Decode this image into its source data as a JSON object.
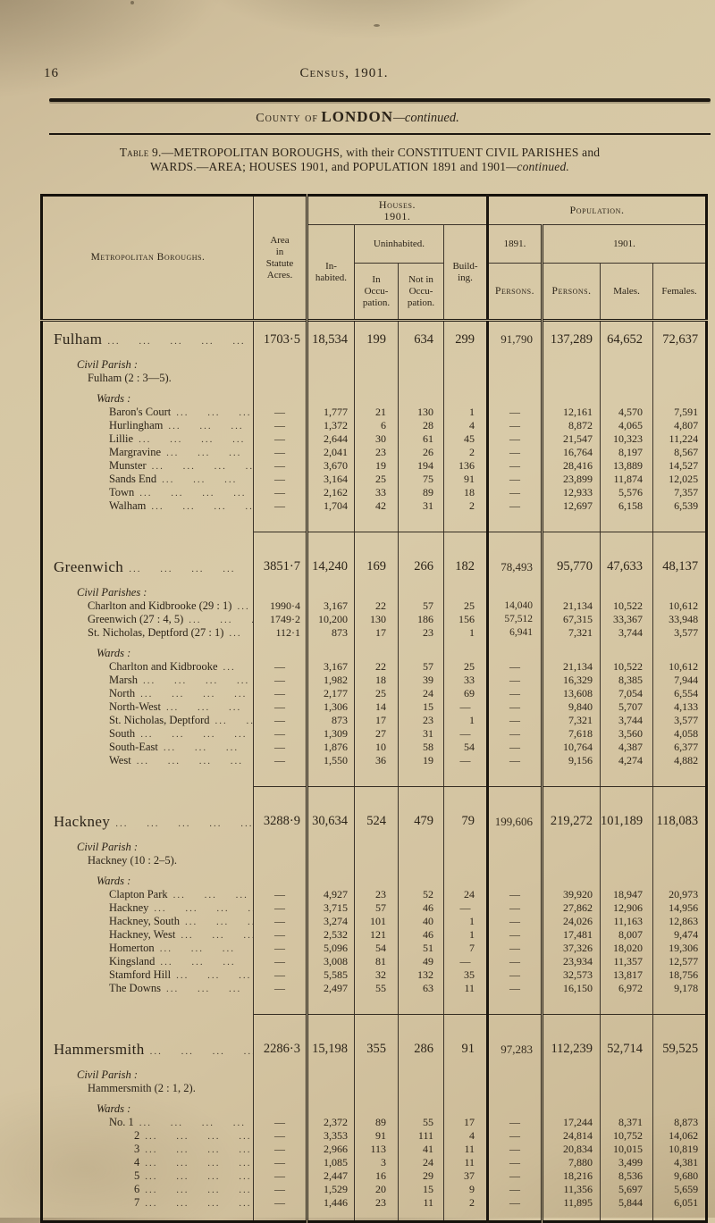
{
  "page": {
    "number": "16",
    "header": "Census, 1901.",
    "county_prefix": "County of",
    "county_name": "LONDON",
    "county_suffix": "—continued.",
    "title_prefix": "Table 9.—",
    "title_line1": "METROPOLITAN BOROUGHS, with their CONSTITUENT CIVIL PARISHES and",
    "title_line2": "WARDS.—AREA; HOUSES 1901, and POPULATION 1891 and 1901",
    "title_line2_italic": "—continued."
  },
  "table": {
    "headers": {
      "boroughs": "Metropolitan Boroughs.",
      "area": "Area\nin\nStatute\nAcres.",
      "houses_group": "Houses.\n1901.",
      "population_group": "Population.",
      "inhabited": "In-\nhabited.",
      "uninhabited": "Uninhabited.",
      "in_occupation": "In\nOccu-\npation.",
      "not_in_occupation": "Not in\nOccu-\npation.",
      "building": "Build-\ning.",
      "y1891": "1891.",
      "y1901": "1901.",
      "persons_1891": "Persons.",
      "persons_1901": "Persons.",
      "males": "Males.",
      "females": "Females."
    },
    "columns": [
      "area",
      "inhabited",
      "in-occupation",
      "not-in-occupation",
      "building",
      "persons-1891",
      "persons-1901",
      "males",
      "females"
    ],
    "sections": [
      {
        "name": "Fulham",
        "totals": [
          "1703·5",
          "18,534",
          "199",
          "634",
          "299",
          "91,790",
          "137,289",
          "64,652",
          "72,637"
        ],
        "parish_label": "Civil Parish :",
        "parishes": [
          {
            "name": "Fulham (2 : 3—5).",
            "values": null
          }
        ],
        "wards_label": "Wards :",
        "wards": [
          {
            "name": "Baron's Court",
            "values": [
              "—",
              "1,777",
              "21",
              "130",
              "1",
              "—",
              "12,161",
              "4,570",
              "7,591"
            ]
          },
          {
            "name": "Hurlingham",
            "values": [
              "—",
              "1,372",
              "6",
              "28",
              "4",
              "—",
              "8,872",
              "4,065",
              "4,807"
            ]
          },
          {
            "name": "Lillie",
            "values": [
              "—",
              "2,644",
              "30",
              "61",
              "45",
              "—",
              "21,547",
              "10,323",
              "11,224"
            ]
          },
          {
            "name": "Margravine",
            "values": [
              "—",
              "2,041",
              "23",
              "26",
              "2",
              "—",
              "16,764",
              "8,197",
              "8,567"
            ]
          },
          {
            "name": "Munster",
            "values": [
              "—",
              "3,670",
              "19",
              "194",
              "136",
              "—",
              "28,416",
              "13,889",
              "14,527"
            ]
          },
          {
            "name": "Sands End",
            "values": [
              "—",
              "3,164",
              "25",
              "75",
              "91",
              "—",
              "23,899",
              "11,874",
              "12,025"
            ]
          },
          {
            "name": "Town",
            "values": [
              "—",
              "2,162",
              "33",
              "89",
              "18",
              "—",
              "12,933",
              "5,576",
              "7,357"
            ]
          },
          {
            "name": "Walham",
            "values": [
              "—",
              "1,704",
              "42",
              "31",
              "2",
              "—",
              "12,697",
              "6,158",
              "6,539"
            ]
          }
        ]
      },
      {
        "name": "Greenwich",
        "totals": [
          "3851·7",
          "14,240",
          "169",
          "266",
          "182",
          "78,493",
          "95,770",
          "47,633",
          "48,137"
        ],
        "parish_label": "Civil Parishes :",
        "parishes": [
          {
            "name": "Charlton and Kidbrooke (29 : 1)",
            "values": [
              "1990·4",
              "3,167",
              "22",
              "57",
              "25",
              "14,040",
              "21,134",
              "10,522",
              "10,612"
            ]
          },
          {
            "name": "Greenwich (27 : 4, 5)",
            "values": [
              "1749·2",
              "10,200",
              "130",
              "186",
              "156",
              "57,512",
              "67,315",
              "33,367",
              "33,948"
            ]
          },
          {
            "name": "St. Nicholas, Deptford (27 : 1)",
            "values": [
              "112·1",
              "873",
              "17",
              "23",
              "1",
              "6,941",
              "7,321",
              "3,744",
              "3,577"
            ]
          }
        ],
        "wards_label": "Wards :",
        "wards": [
          {
            "name": "Charlton and Kidbrooke",
            "values": [
              "—",
              "3,167",
              "22",
              "57",
              "25",
              "—",
              "21,134",
              "10,522",
              "10,612"
            ]
          },
          {
            "name": "Marsh",
            "values": [
              "—",
              "1,982",
              "18",
              "39",
              "33",
              "—",
              "16,329",
              "8,385",
              "7,944"
            ]
          },
          {
            "name": "North",
            "values": [
              "—",
              "2,177",
              "25",
              "24",
              "69",
              "—",
              "13,608",
              "7,054",
              "6,554"
            ]
          },
          {
            "name": "North-West",
            "values": [
              "—",
              "1,306",
              "14",
              "15",
              "—",
              "—",
              "9,840",
              "5,707",
              "4,133"
            ]
          },
          {
            "name": "St. Nicholas, Deptford",
            "values": [
              "—",
              "873",
              "17",
              "23",
              "1",
              "—",
              "7,321",
              "3,744",
              "3,577"
            ]
          },
          {
            "name": "South",
            "values": [
              "—",
              "1,309",
              "27",
              "31",
              "—",
              "—",
              "7,618",
              "3,560",
              "4,058"
            ]
          },
          {
            "name": "South-East",
            "values": [
              "—",
              "1,876",
              "10",
              "58",
              "54",
              "—",
              "10,764",
              "4,387",
              "6,377"
            ]
          },
          {
            "name": "West",
            "values": [
              "—",
              "1,550",
              "36",
              "19",
              "—",
              "—",
              "9,156",
              "4,274",
              "4,882"
            ]
          }
        ]
      },
      {
        "name": "Hackney",
        "totals": [
          "3288·9",
          "30,634",
          "524",
          "479",
          "79",
          "199,606",
          "219,272",
          "101,189",
          "118,083"
        ],
        "parish_label": "Civil Parish :",
        "parishes": [
          {
            "name": "Hackney (10 : 2–5).",
            "values": null
          }
        ],
        "wards_label": "Wards :",
        "wards": [
          {
            "name": "Clapton Park",
            "values": [
              "—",
              "4,927",
              "23",
              "52",
              "24",
              "—",
              "39,920",
              "18,947",
              "20,973"
            ]
          },
          {
            "name": "Hackney",
            "values": [
              "—",
              "3,715",
              "57",
              "46",
              "—",
              "—",
              "27,862",
              "12,906",
              "14,956"
            ]
          },
          {
            "name": "Hackney, South",
            "values": [
              "—",
              "3,274",
              "101",
              "40",
              "1",
              "—",
              "24,026",
              "11,163",
              "12,863"
            ]
          },
          {
            "name": "Hackney, West",
            "values": [
              "—",
              "2,532",
              "121",
              "46",
              "1",
              "—",
              "17,481",
              "8,007",
              "9,474"
            ]
          },
          {
            "name": "Homerton",
            "values": [
              "—",
              "5,096",
              "54",
              "51",
              "7",
              "—",
              "37,326",
              "18,020",
              "19,306"
            ]
          },
          {
            "name": "Kingsland",
            "values": [
              "—",
              "3,008",
              "81",
              "49",
              "—",
              "—",
              "23,934",
              "11,357",
              "12,577"
            ]
          },
          {
            "name": "Stamford Hill",
            "values": [
              "—",
              "5,585",
              "32",
              "132",
              "35",
              "—",
              "32,573",
              "13,817",
              "18,756"
            ]
          },
          {
            "name": "The Downs",
            "values": [
              "—",
              "2,497",
              "55",
              "63",
              "11",
              "—",
              "16,150",
              "6,972",
              "9,178"
            ]
          }
        ]
      },
      {
        "name": "Hammersmith",
        "totals": [
          "2286·3",
          "15,198",
          "355",
          "286",
          "91",
          "97,283",
          "112,239",
          "52,714",
          "59,525"
        ],
        "parish_label": "Civil Parish :",
        "parishes": [
          {
            "name": "Hammersmith (2 : 1, 2).",
            "values": null
          }
        ],
        "wards_label": "Wards :",
        "wards": [
          {
            "name": "No. 1",
            "values": [
              "—",
              "2,372",
              "89",
              "55",
              "17",
              "—",
              "17,244",
              "8,371",
              "8,873"
            ]
          },
          {
            "name": "2",
            "sub": true,
            "values": [
              "—",
              "3,353",
              "91",
              "111",
              "4",
              "—",
              "24,814",
              "10,752",
              "14,062"
            ]
          },
          {
            "name": "3",
            "sub": true,
            "values": [
              "—",
              "2,966",
              "113",
              "41",
              "11",
              "—",
              "20,834",
              "10,015",
              "10,819"
            ]
          },
          {
            "name": "4",
            "sub": true,
            "values": [
              "—",
              "1,085",
              "3",
              "24",
              "11",
              "—",
              "7,880",
              "3,499",
              "4,381"
            ]
          },
          {
            "name": "5",
            "sub": true,
            "values": [
              "—",
              "2,447",
              "16",
              "29",
              "37",
              "—",
              "18,216",
              "8,536",
              "9,680"
            ]
          },
          {
            "name": "6",
            "sub": true,
            "values": [
              "—",
              "1,529",
              "20",
              "15",
              "9",
              "—",
              "11,356",
              "5,697",
              "5,659"
            ]
          },
          {
            "name": "7",
            "sub": true,
            "values": [
              "—",
              "1,446",
              "23",
              "11",
              "2",
              "—",
              "11,895",
              "5,844",
              "6,051"
            ]
          }
        ]
      }
    ]
  }
}
